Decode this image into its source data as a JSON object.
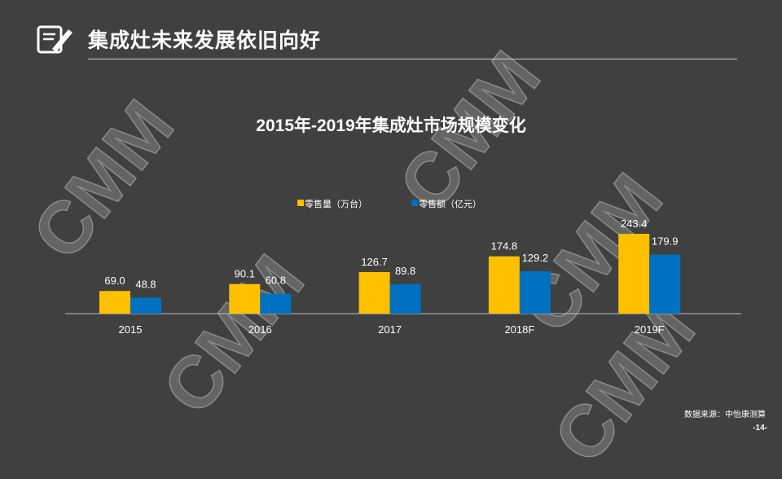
{
  "header": {
    "title": "集成灶未来发展依旧向好",
    "icon": "edit-note-icon"
  },
  "watermark": "CMM",
  "chart_data": {
    "type": "bar",
    "title": "2015年-2019年集成灶市场规模变化",
    "categories": [
      "2015",
      "2016",
      "2017",
      "2018F",
      "2019F"
    ],
    "series": [
      {
        "name": "零售量（万台）",
        "color": "#FFC000",
        "values": [
          69.0,
          90.1,
          126.7,
          174.8,
          243.4
        ]
      },
      {
        "name": "零售额（亿元）",
        "color": "#0070C0",
        "values": [
          48.8,
          60.8,
          89.8,
          129.2,
          179.9
        ]
      }
    ],
    "legend": "top",
    "grid": false,
    "ylim": [
      0,
      260
    ]
  },
  "footer": {
    "source": "数据来源：中怡康测算",
    "page": "-14-"
  }
}
